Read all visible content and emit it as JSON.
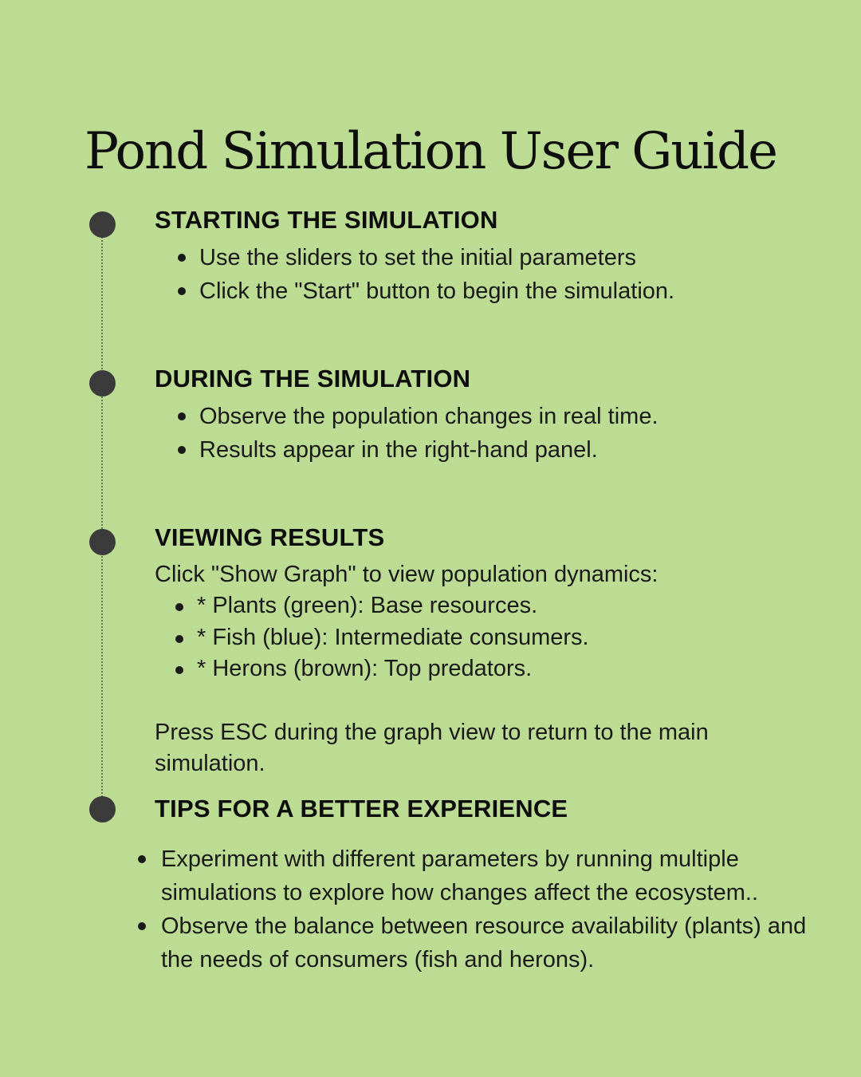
{
  "title": "Pond Simulation User Guide",
  "sections": [
    {
      "heading": "STARTING THE SIMULATION",
      "bullets": [
        "Use the sliders to set the initial parameters",
        "Click the \"Start\" button to begin the simulation."
      ]
    },
    {
      "heading": "DURING THE SIMULATION",
      "bullets": [
        "Observe the population changes in real time.",
        "Results appear in the right-hand panel."
      ]
    },
    {
      "heading": "VIEWING RESULTS",
      "intro": "Click \"Show Graph\" to view population dynamics:",
      "bullets": [
        "* Plants (green): Base resources.",
        "* Fish (blue): Intermediate consumers.",
        "* Herons (brown): Top predators."
      ],
      "note": "Press ESC during the graph view to return to the main simulation."
    },
    {
      "heading": "TIPS FOR A BETTER EXPERIENCE",
      "bullets": [
        "Experiment with different parameters by running multiple simulations to explore how changes affect the ecosystem..",
        "Observe the balance between resource availability (plants) and the needs of consumers (fish and herons)."
      ]
    }
  ],
  "colors": {
    "background": "#bddc93",
    "timeline_dot": "#3b3b3b",
    "text": "#111111"
  }
}
